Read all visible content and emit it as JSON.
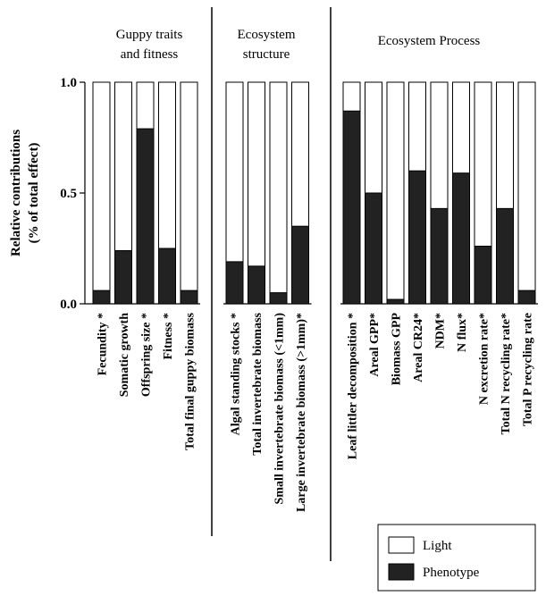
{
  "chart_data": {
    "type": "bar",
    "stacked": true,
    "ylabel_line1": "Relative contributions",
    "ylabel_line2": "(% of total effect)",
    "ylim": [
      0,
      1
    ],
    "yticks": [
      "0.0",
      "0.5",
      "1.0"
    ],
    "groups": [
      {
        "title_lines": [
          "Guppy traits",
          "and fitness"
        ],
        "categories": [
          "Fecundity *",
          "Somatic growth",
          "Offspring size *",
          "Fitness *",
          "Total final guppy biomass"
        ],
        "phenotype": [
          0.06,
          0.24,
          0.79,
          0.25,
          0.06
        ]
      },
      {
        "title_lines": [
          "Ecosystem",
          "structure"
        ],
        "categories": [
          "Algal standing stocks *",
          "Total invertebrate biomass",
          "Small invertebrate biomass (<1mm)",
          "Large invertebrate  biomass (>1mm)*"
        ],
        "phenotype": [
          0.19,
          0.17,
          0.05,
          0.35
        ]
      },
      {
        "title_lines": [
          "Ecosystem Process"
        ],
        "categories": [
          "Leaf littler decomposition *",
          "Areal GPP*",
          "Biomass GPP",
          "Areal CR24*",
          "NDM*",
          "N flux*",
          "N excretion rate*",
          "Total N recycling rate*",
          "Total P recycling  rate"
        ],
        "phenotype": [
          0.87,
          0.5,
          0.02,
          0.6,
          0.43,
          0.59,
          0.26,
          0.43,
          0.06
        ]
      }
    ],
    "legend": {
      "position": "bottom-right",
      "items": [
        {
          "label": "Light",
          "color": "#ffffff"
        },
        {
          "label": "Phenotype",
          "color": "#222222"
        }
      ]
    },
    "colors": {
      "light": "#ffffff",
      "phenotype": "#222222",
      "stroke": "#000000"
    }
  }
}
